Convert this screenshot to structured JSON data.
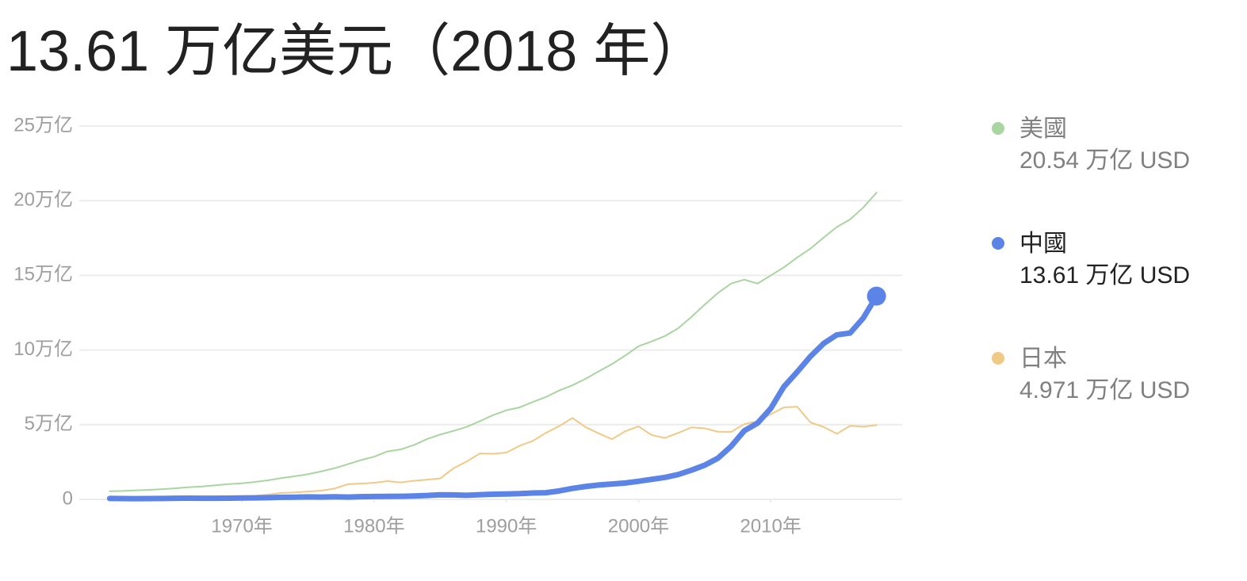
{
  "chart_data": {
    "type": "line",
    "title": "13.61 万亿美元（2018 年）",
    "x": [
      1960,
      1961,
      1962,
      1963,
      1964,
      1965,
      1966,
      1967,
      1968,
      1969,
      1970,
      1971,
      1972,
      1973,
      1974,
      1975,
      1976,
      1977,
      1978,
      1979,
      1980,
      1981,
      1982,
      1983,
      1984,
      1985,
      1986,
      1987,
      1988,
      1989,
      1990,
      1991,
      1992,
      1993,
      1994,
      1995,
      1996,
      1997,
      1998,
      1999,
      2000,
      2001,
      2002,
      2003,
      2004,
      2005,
      2006,
      2007,
      2008,
      2009,
      2010,
      2011,
      2012,
      2013,
      2014,
      2015,
      2016,
      2017,
      2018
    ],
    "xlim": [
      1958,
      2020
    ],
    "xticks": [
      {
        "value": 1970,
        "label": "1970年"
      },
      {
        "value": 1980,
        "label": "1980年"
      },
      {
        "value": 1990,
        "label": "1990年"
      },
      {
        "value": 2000,
        "label": "2000年"
      },
      {
        "value": 2010,
        "label": "2010年"
      }
    ],
    "ylim": [
      0,
      25
    ],
    "yticks": [
      0,
      {
        "value": 5,
        "label": "5万亿"
      },
      {
        "value": 10,
        "label": "10万亿"
      },
      {
        "value": 15,
        "label": "15万亿"
      },
      {
        "value": 20,
        "label": "20万亿"
      },
      {
        "value": 25,
        "label": "25万亿"
      }
    ],
    "grid": true,
    "legend": "right",
    "series": [
      {
        "name": "美國",
        "color": "#a8d5a0",
        "highlight": false,
        "values": [
          0.543,
          0.563,
          0.605,
          0.638,
          0.686,
          0.744,
          0.815,
          0.862,
          0.943,
          1.019,
          1.073,
          1.165,
          1.28,
          1.425,
          1.545,
          1.684,
          1.873,
          2.082,
          2.352,
          2.627,
          2.857,
          3.207,
          3.343,
          3.634,
          4.037,
          4.339,
          4.58,
          4.855,
          5.236,
          5.641,
          5.963,
          6.158,
          6.52,
          6.859,
          7.287,
          7.64,
          8.073,
          8.578,
          9.063,
          9.631,
          10.252,
          10.582,
          10.936,
          11.458,
          12.214,
          13.037,
          13.815,
          14.452,
          14.713,
          14.449,
          14.992,
          15.543,
          16.197,
          16.785,
          17.527,
          18.238,
          18.745,
          19.543,
          20.54
        ],
        "value_labels": [
          null,
          null,
          null,
          null,
          null,
          null,
          null,
          null,
          null,
          null,
          null,
          null,
          null,
          null,
          null,
          null,
          null,
          null,
          null,
          null,
          null,
          null,
          null,
          null,
          null,
          null,
          null,
          null,
          null,
          null,
          null,
          null,
          null,
          null,
          null,
          null,
          null,
          null,
          null,
          null,
          null,
          null,
          null,
          null,
          null,
          null,
          null,
          null,
          null,
          null,
          null,
          null,
          null,
          null,
          null,
          null,
          null,
          null,
          "20.54 万亿 USD"
        ]
      },
      {
        "name": "中國",
        "color": "#5b84e6",
        "highlight": true,
        "values": [
          0.0597,
          0.05,
          0.0472,
          0.0507,
          0.0597,
          0.0704,
          0.0769,
          0.0727,
          0.07,
          0.0787,
          0.0926,
          0.0996,
          0.1137,
          0.1385,
          0.1442,
          0.1634,
          0.1539,
          0.1749,
          0.1495,
          0.1783,
          0.1911,
          0.196,
          0.2034,
          0.2285,
          0.2578,
          0.3074,
          0.2986,
          0.2726,
          0.3121,
          0.3478,
          0.3609,
          0.3834,
          0.4269,
          0.4447,
          0.5643,
          0.7345,
          0.8636,
          0.9615,
          1.029,
          1.094,
          1.211,
          1.339,
          1.471,
          1.66,
          1.955,
          2.286,
          2.752,
          3.55,
          4.594,
          5.102,
          6.087,
          7.552,
          8.532,
          9.57,
          10.439,
          11.016,
          11.138,
          12.144,
          13.61
        ],
        "value_labels": [
          null,
          null,
          null,
          null,
          null,
          null,
          null,
          null,
          null,
          null,
          null,
          null,
          null,
          null,
          null,
          null,
          null,
          null,
          null,
          null,
          null,
          null,
          null,
          null,
          null,
          null,
          null,
          null,
          null,
          null,
          null,
          null,
          null,
          null,
          null,
          null,
          null,
          null,
          null,
          null,
          null,
          null,
          null,
          null,
          null,
          null,
          null,
          null,
          null,
          null,
          null,
          null,
          null,
          null,
          null,
          null,
          null,
          null,
          "13.61 万亿 USD"
        ]
      },
      {
        "name": "日本",
        "color": "#f0c987",
        "highlight": false,
        "values": [
          0.0443,
          0.0537,
          0.0604,
          0.0694,
          0.0817,
          0.091,
          0.1057,
          0.1238,
          0.1469,
          0.1722,
          0.2127,
          0.2402,
          0.3181,
          0.4326,
          0.4631,
          0.5213,
          0.5863,
          0.7216,
          1.0137,
          1.0556,
          1.1054,
          1.2181,
          1.1344,
          1.2434,
          1.3183,
          1.3987,
          2.0785,
          2.5326,
          3.0718,
          3.0548,
          3.1329,
          3.5845,
          3.9088,
          4.4544,
          4.907,
          5.4492,
          4.8337,
          4.4148,
          4.0325,
          4.562,
          4.8875,
          4.3036,
          4.115,
          4.4457,
          4.8151,
          4.7554,
          4.5303,
          4.5153,
          5.0379,
          5.2313,
          5.7001,
          6.1575,
          6.2032,
          5.1557,
          4.8504,
          4.3895,
          4.9227,
          4.8667,
          4.971
        ],
        "value_labels": [
          null,
          null,
          null,
          null,
          null,
          null,
          null,
          null,
          null,
          null,
          null,
          null,
          null,
          null,
          null,
          null,
          null,
          null,
          null,
          null,
          null,
          null,
          null,
          null,
          null,
          null,
          null,
          null,
          null,
          null,
          null,
          null,
          null,
          null,
          null,
          null,
          null,
          null,
          null,
          null,
          null,
          null,
          null,
          null,
          null,
          null,
          null,
          null,
          null,
          null,
          null,
          null,
          null,
          null,
          null,
          null,
          null,
          null,
          "4.971 万亿 USD"
        ]
      }
    ]
  }
}
